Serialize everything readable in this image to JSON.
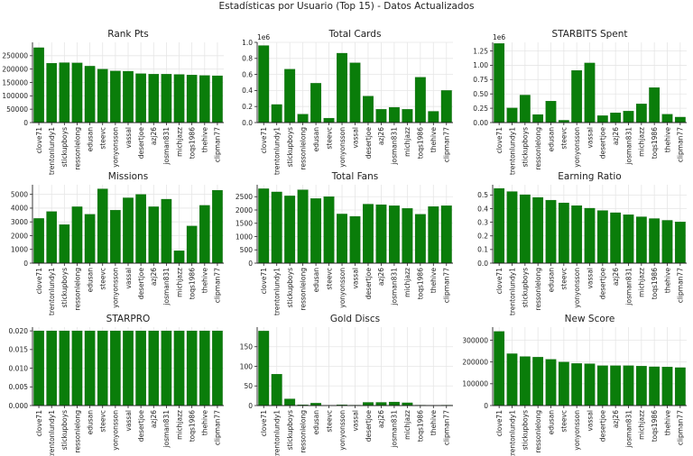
{
  "suptitle": "Estadísticas por Usuario (Top 15) - Datos Actualizados",
  "colors": {
    "bar": "#0a7d0a",
    "bar_edge": "#0b5e0b",
    "grid": "#e6e6e6",
    "axis": "#222222"
  },
  "chart_data": [
    {
      "type": "bar",
      "title": "Rank Pts",
      "categories": [
        "clove71",
        "trentonlundy1",
        "stickupboys",
        "ressonlelong",
        "edusan",
        "steevc",
        "yonyonsson",
        "vassal",
        "desertjoe",
        "azj26",
        "josman831",
        "michjazz",
        "toqs1986",
        "thehive",
        "clipman77"
      ],
      "values": [
        280000,
        222000,
        224000,
        223000,
        211000,
        200000,
        193000,
        192000,
        183000,
        181000,
        181000,
        180000,
        178000,
        176000,
        175000
      ],
      "ylim": [
        0,
        300000
      ],
      "yticks": [
        0,
        50000,
        100000,
        150000,
        200000,
        250000
      ],
      "ytick_labels": [
        "0",
        "50000",
        "100000",
        "150000",
        "200000",
        "250000"
      ],
      "offset_label": "",
      "grid": true
    },
    {
      "type": "bar",
      "title": "Total Cards",
      "categories": [
        "clove71",
        "trentonlundy1",
        "stickupboys",
        "ressonlelong",
        "edusan",
        "steevc",
        "yonyonsson",
        "vassal",
        "desertjoe",
        "azj26",
        "josman831",
        "michjazz",
        "toqs1986",
        "thehive",
        "clipman77"
      ],
      "values": [
        960000,
        225000,
        665000,
        105000,
        490000,
        55000,
        865000,
        745000,
        330000,
        165000,
        190000,
        165000,
        565000,
        140000,
        400000
      ],
      "ylim": [
        0,
        1000000
      ],
      "yticks": [
        0,
        200000,
        400000,
        600000,
        800000,
        1000000
      ],
      "ytick_labels": [
        "0.0",
        "0.2",
        "0.4",
        "0.6",
        "0.8",
        "1.0"
      ],
      "offset_label": "1e6",
      "grid": true
    },
    {
      "type": "bar",
      "title": "STARBITS Spent",
      "categories": [
        "clove71",
        "trentonlundy1",
        "stickupboys",
        "ressonlelong",
        "edusan",
        "steevc",
        "yonyonsson",
        "vassal",
        "desertjoe",
        "azj26",
        "josman831",
        "michjazz",
        "toqs1986",
        "thehive",
        "clipman77"
      ],
      "values": [
        1380000,
        255000,
        480000,
        140000,
        375000,
        40000,
        910000,
        1040000,
        120000,
        170000,
        200000,
        325000,
        610000,
        145000,
        95000
      ],
      "ylim": [
        0,
        1400000
      ],
      "yticks": [
        0,
        250000,
        500000,
        750000,
        1000000,
        1250000
      ],
      "ytick_labels": [
        "0.00",
        "0.25",
        "0.50",
        "0.75",
        "1.00",
        "1.25"
      ],
      "offset_label": "1e6",
      "grid": true
    },
    {
      "type": "bar",
      "title": "Missions",
      "categories": [
        "clove71",
        "trentonlundy1",
        "stickupboys",
        "ressonlelong",
        "edusan",
        "steevc",
        "yonyonsson",
        "vassal",
        "desertjoe",
        "azj26",
        "josman831",
        "michjazz",
        "toqs1986",
        "thehive",
        "clipman77"
      ],
      "values": [
        3250,
        3750,
        2800,
        4100,
        3550,
        5400,
        3850,
        4750,
        5000,
        4100,
        4650,
        900,
        2700,
        4200,
        5300
      ],
      "ylim": [
        0,
        5700
      ],
      "yticks": [
        0,
        1000,
        2000,
        3000,
        4000,
        5000
      ],
      "ytick_labels": [
        "0",
        "1000",
        "2000",
        "3000",
        "4000",
        "5000"
      ],
      "offset_label": "",
      "grid": true
    },
    {
      "type": "bar",
      "title": "Total Fans",
      "categories": [
        "clove71",
        "trentonlundy1",
        "stickupboys",
        "ressonlelong",
        "edusan",
        "steevc",
        "yonyonsson",
        "vassal",
        "desertjoe",
        "azj26",
        "josman831",
        "michjazz",
        "toqs1986",
        "thehive",
        "clipman77"
      ],
      "values": [
        2800,
        2680,
        2530,
        2760,
        2430,
        2500,
        1850,
        1760,
        2220,
        2200,
        2160,
        2060,
        1840,
        2130,
        2160
      ],
      "ylim": [
        0,
        2950
      ],
      "yticks": [
        0,
        500,
        1000,
        1500,
        2000,
        2500
      ],
      "ytick_labels": [
        "0",
        "500",
        "1000",
        "1500",
        "2000",
        "2500"
      ],
      "offset_label": "",
      "grid": true
    },
    {
      "type": "bar",
      "title": "Earning Ratio",
      "categories": [
        "clove71",
        "trentonlundy1",
        "stickupboys",
        "ressonlelong",
        "edusan",
        "steevc",
        "yonyonsson",
        "vassal",
        "desertjoe",
        "azj26",
        "josman831",
        "michjazz",
        "toqs1986",
        "thehive",
        "clipman77"
      ],
      "values": [
        0.548,
        0.525,
        0.502,
        0.482,
        0.462,
        0.442,
        0.422,
        0.403,
        0.386,
        0.37,
        0.355,
        0.34,
        0.327,
        0.314,
        0.302
      ],
      "ylim": [
        0,
        0.575
      ],
      "yticks": [
        0,
        0.1,
        0.2,
        0.3,
        0.4,
        0.5
      ],
      "ytick_labels": [
        "0.0",
        "0.1",
        "0.2",
        "0.3",
        "0.4",
        "0.5"
      ],
      "offset_label": "",
      "grid": true
    },
    {
      "type": "bar",
      "title": "STARPRO",
      "categories": [
        "clove71",
        "trentonlundy1",
        "stickupboys",
        "ressonlelong",
        "edusan",
        "steevc",
        "yonyonsson",
        "vassal",
        "desertjoe",
        "azj26",
        "josman831",
        "michjazz",
        "toqs1986",
        "thehive",
        "clipman77"
      ],
      "values": [
        0.02,
        0.02,
        0.02,
        0.02,
        0.02,
        0.02,
        0.02,
        0.02,
        0.02,
        0.02,
        0.02,
        0.02,
        0.02,
        0.02,
        0.02
      ],
      "ylim": [
        0,
        0.021
      ],
      "yticks": [
        0,
        0.005,
        0.01,
        0.015,
        0.02
      ],
      "ytick_labels": [
        "0.000",
        "0.005",
        "0.010",
        "0.015",
        "0.020"
      ],
      "offset_label": "",
      "grid": true
    },
    {
      "type": "bar",
      "title": "Gold Discs",
      "categories": [
        "clove71",
        "trentonlundy1",
        "stickupboys",
        "ressonlelong",
        "edusan",
        "steevc",
        "yonyonsson",
        "vassal",
        "desertjoe",
        "azj26",
        "josman831",
        "michjazz",
        "toqs1986",
        "thehive",
        "clipman77"
      ],
      "values": [
        190,
        80,
        17,
        2,
        6,
        0,
        2,
        1,
        8,
        8,
        9,
        7,
        1,
        0,
        1
      ],
      "ylim": [
        0,
        200
      ],
      "yticks": [
        0,
        50,
        100,
        150
      ],
      "ytick_labels": [
        "0",
        "50",
        "100",
        "150"
      ],
      "offset_label": "",
      "grid": true
    },
    {
      "type": "bar",
      "title": "New Score",
      "categories": [
        "clove71",
        "trentonlundy1",
        "stickupboys",
        "ressonlelong",
        "edusan",
        "steevc",
        "yonyonsson",
        "vassal",
        "desertjoe",
        "azj26",
        "josman831",
        "michjazz",
        "toqs1986",
        "thehive",
        "clipman77"
      ],
      "values": [
        340000,
        238000,
        225000,
        222000,
        212000,
        200000,
        193000,
        192000,
        183000,
        183000,
        183000,
        181000,
        178000,
        177000,
        174000
      ],
      "ylim": [
        0,
        360000
      ],
      "yticks": [
        0,
        100000,
        200000,
        300000
      ],
      "ytick_labels": [
        "0",
        "100000",
        "200000",
        "300000"
      ],
      "offset_label": "",
      "grid": true
    }
  ]
}
